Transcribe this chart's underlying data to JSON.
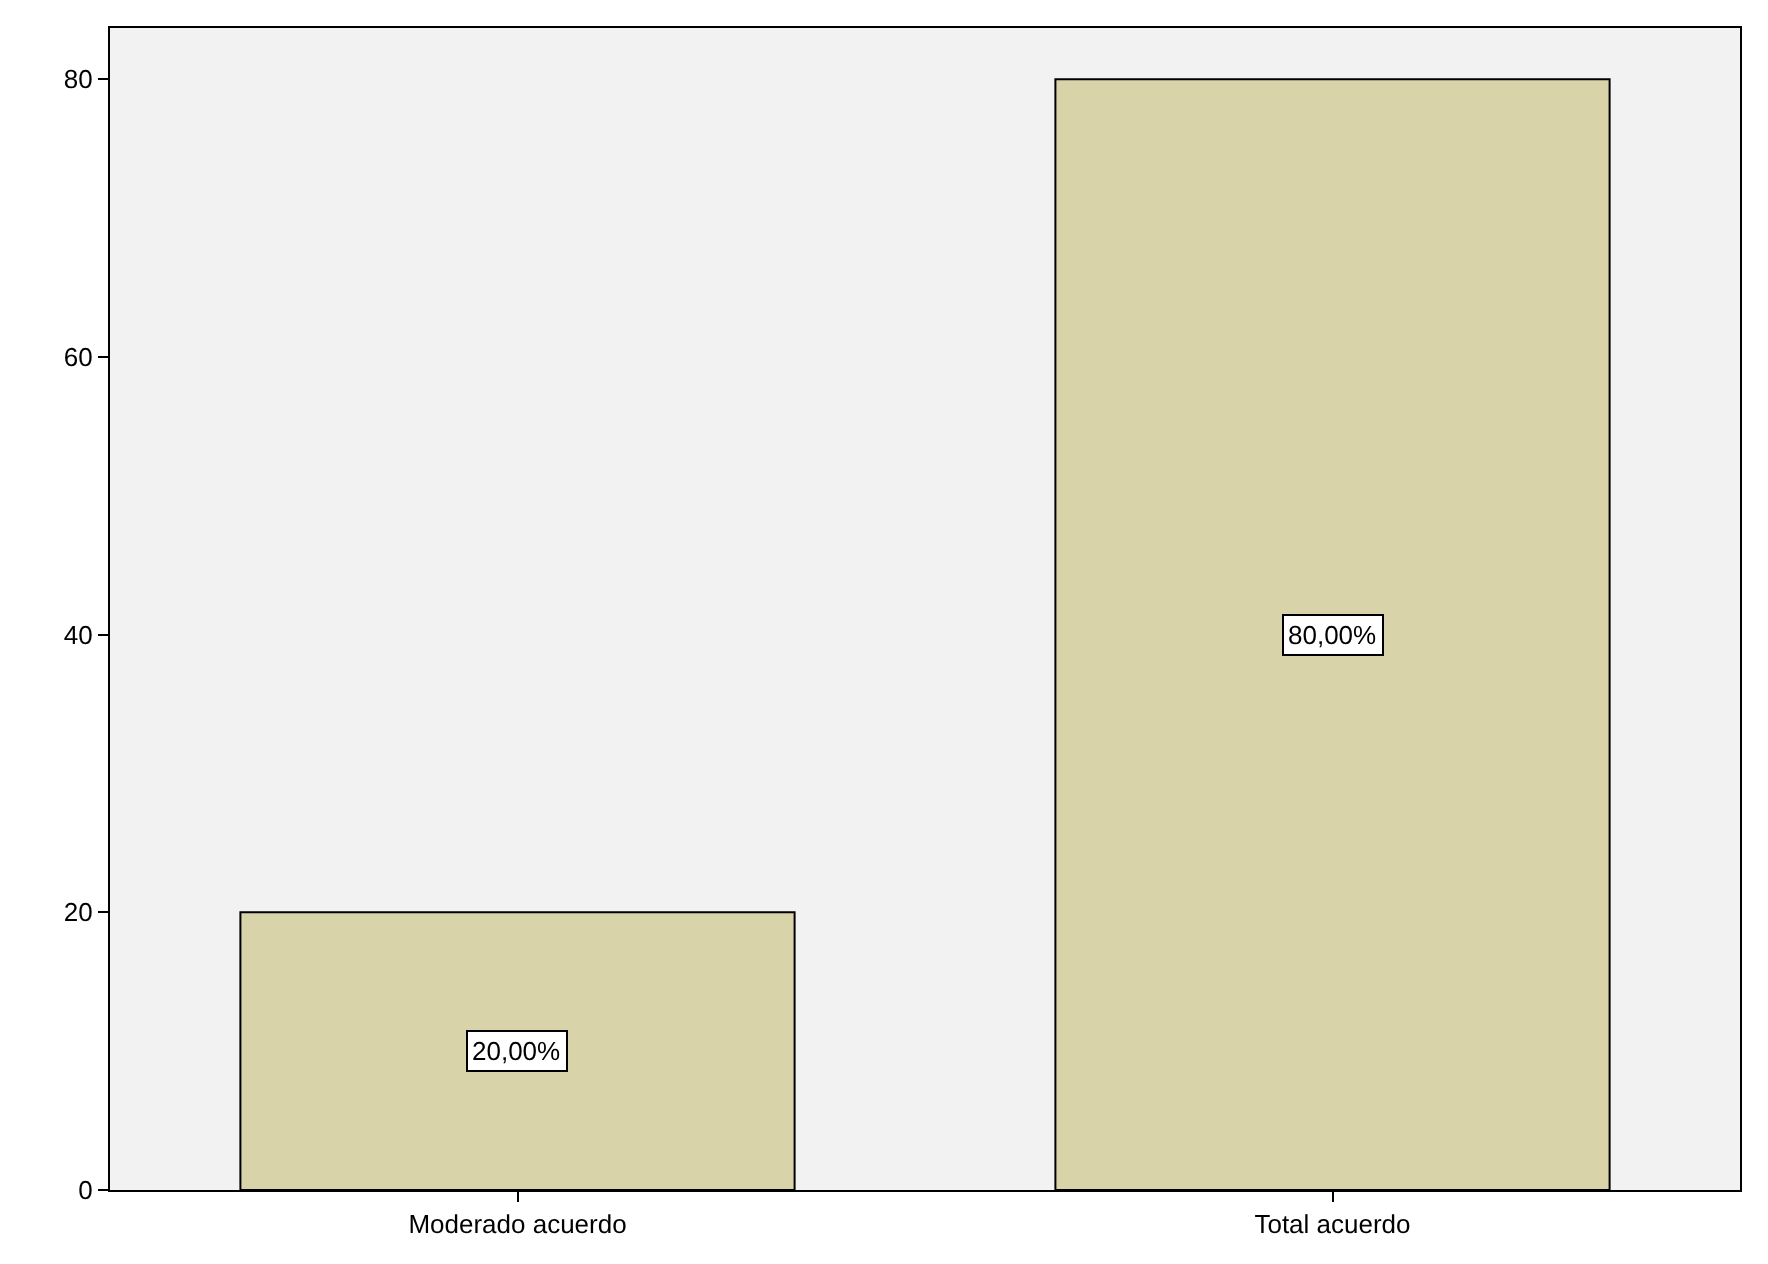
{
  "chart_data": {
    "type": "bar",
    "categories": [
      "Moderado acuerdo",
      "Total acuerdo"
    ],
    "values": [
      20,
      80
    ],
    "color": "#d9d3aa",
    "value_labels": [
      "20,00%",
      "80,00%"
    ],
    "ylim": [
      0,
      83.7
    ],
    "yticks": [
      0,
      20,
      40,
      60,
      80
    ]
  }
}
